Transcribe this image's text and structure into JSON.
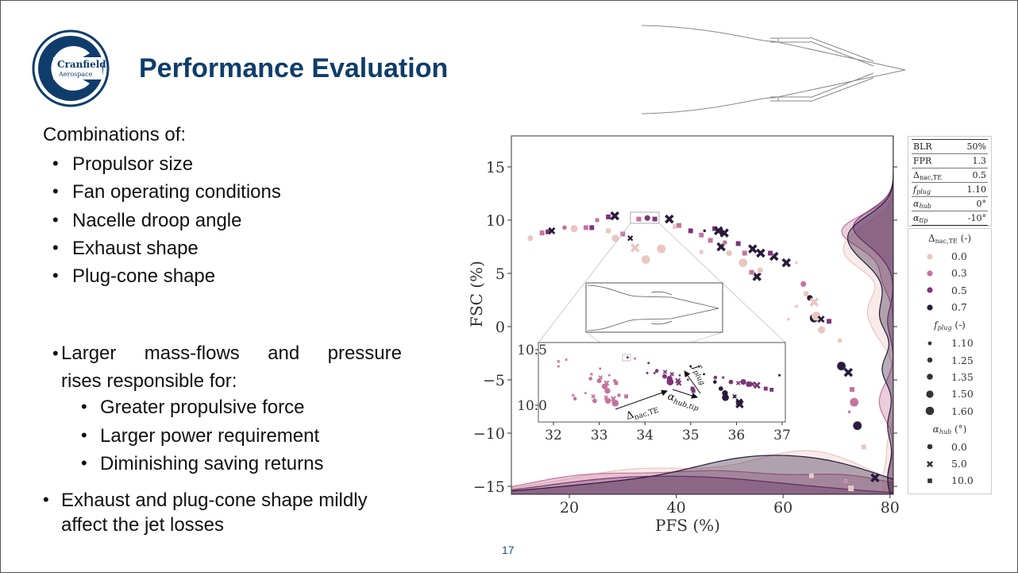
{
  "slide": {
    "logo": {
      "name": "Cranfield",
      "sub": "Aerospace",
      "color": "#0f3d6b"
    },
    "title": "Performance Evaluation",
    "page_number": "17",
    "bullets_intro": "Combinations of:",
    "bullets": [
      "Propulsor size",
      "Fan operating conditions",
      "Nacelle droop angle",
      "Exhaust shape",
      "Plug-cone shape"
    ],
    "bullet2_lines": [
      "Larger mass-flows and pressure",
      "rises responsible for:"
    ],
    "sub_bullets": [
      "Greater propulsive force",
      "Larger power requirement",
      "Diminishing saving returns"
    ],
    "bullet3_lines": [
      "Exhaust and plug-cone shape mildly",
      "affect the jet losses"
    ]
  },
  "table": [
    {
      "sym": "BLR",
      "sub": "",
      "italic": false,
      "value": "50%"
    },
    {
      "sym": "FPR",
      "sub": "",
      "italic": false,
      "value": "1.3"
    },
    {
      "sym": "Δ",
      "sub": "nac,TE",
      "italic": false,
      "value": "0.5"
    },
    {
      "sym": "f",
      "sub": "plug",
      "italic": true,
      "value": "1.10"
    },
    {
      "sym": "α",
      "sub": "hub",
      "italic": true,
      "value": "0°"
    },
    {
      "sym": "α",
      "sub": "tip",
      "italic": true,
      "value": "-10°"
    }
  ],
  "legend": {
    "dnac": {
      "sym": "Δ",
      "sub": "nac,TE",
      "unit": " (-)",
      "items": [
        "0.0",
        "0.3",
        "0.5",
        "0.7"
      ]
    },
    "fplug": {
      "sym": "f",
      "sub": "plug",
      "unit": " (-)",
      "items": [
        "1.10",
        "1.25",
        "1.35",
        "1.50",
        "1.60"
      ]
    },
    "ahub": {
      "sym": "α",
      "sub": "hub",
      "unit": " (°)",
      "items": [
        "0.0",
        "5.0",
        "10.0"
      ],
      "markers": [
        "circle",
        "x",
        "square"
      ]
    }
  },
  "chart_data": {
    "type": "scatter",
    "xlabel": "PFS (%)",
    "ylabel": "FSC (%)",
    "xlim": [
      9.2,
      80.6
    ],
    "ylim": [
      -15.8,
      17.9
    ],
    "xticks": [
      "20",
      "40",
      "60",
      "80"
    ],
    "xtick_values": [
      20,
      40,
      60,
      80
    ],
    "yticks": [
      "−15",
      "−10",
      "−5",
      "0",
      "5",
      "10",
      "15"
    ],
    "ytick_values": [
      -15,
      -10,
      -5,
      0,
      5,
      10,
      15
    ],
    "grid": false,
    "marginal_kde": true,
    "hue": {
      "name": "Δnac,TE",
      "values": [
        0.0,
        0.3,
        0.5,
        0.7
      ],
      "colors": [
        "#eac6c0",
        "#c4739c",
        "#7b3677",
        "#2a1a3c"
      ]
    },
    "size": {
      "name": "fplug",
      "values": [
        1.1,
        1.25,
        1.35,
        1.5,
        1.6
      ]
    },
    "style": {
      "name": "αhub",
      "values": [
        0.0,
        5.0,
        10.0
      ],
      "markers": [
        "circle",
        "x",
        "square"
      ]
    },
    "point_fields": [
      "PFS",
      "FSC",
      "dnac",
      "fplug",
      "ahub"
    ],
    "points": [
      [
        12.7,
        8.3,
        0.0,
        1.35,
        0
      ],
      [
        14.9,
        8.8,
        0.3,
        1.35,
        10
      ],
      [
        16.0,
        8.9,
        0.5,
        1.35,
        10
      ],
      [
        16.7,
        9.0,
        0.7,
        1.35,
        5
      ],
      [
        19.1,
        9.3,
        0.3,
        1.25,
        0
      ],
      [
        20.9,
        9.2,
        0.0,
        1.5,
        0
      ],
      [
        23.1,
        9.3,
        0.3,
        1.35,
        10
      ],
      [
        24.2,
        9.3,
        0.5,
        1.35,
        10
      ],
      [
        25.2,
        10.0,
        0.3,
        1.25,
        0
      ],
      [
        27.3,
        10.3,
        0.5,
        1.35,
        10
      ],
      [
        28.5,
        10.4,
        0.7,
        1.5,
        5
      ],
      [
        27.3,
        9.0,
        0.0,
        1.35,
        10
      ],
      [
        28.6,
        8.3,
        0.0,
        1.5,
        0
      ],
      [
        30.0,
        8.7,
        0.3,
        1.35,
        10
      ],
      [
        31.4,
        8.3,
        0.7,
        1.25,
        5
      ],
      [
        32.3,
        7.4,
        0.0,
        1.5,
        5
      ],
      [
        34.3,
        6.3,
        0.0,
        1.6,
        0
      ],
      [
        37.2,
        7.3,
        0.0,
        1.6,
        0
      ],
      [
        33.0,
        10.1,
        0.3,
        1.35,
        10
      ],
      [
        34.6,
        10.2,
        0.5,
        1.35,
        0
      ],
      [
        36.0,
        10.1,
        0.5,
        1.35,
        10
      ],
      [
        38.7,
        10.1,
        0.7,
        1.5,
        5
      ],
      [
        39.8,
        9.4,
        0.0,
        1.35,
        10
      ],
      [
        40.5,
        9.5,
        0.3,
        1.35,
        10
      ],
      [
        42.7,
        9.0,
        0.5,
        1.35,
        10
      ],
      [
        44.7,
        8.6,
        0.3,
        1.35,
        10
      ],
      [
        45.3,
        9.0,
        0.7,
        1.1,
        0
      ],
      [
        47.2,
        9.2,
        0.5,
        1.35,
        10
      ],
      [
        47.9,
        9.0,
        0.7,
        1.5,
        5
      ],
      [
        49.0,
        8.8,
        0.7,
        1.5,
        5
      ],
      [
        46.4,
        8.1,
        0.3,
        1.35,
        10
      ],
      [
        48.4,
        7.5,
        0.7,
        1.5,
        5
      ],
      [
        49.1,
        7.9,
        0.3,
        1.25,
        0
      ],
      [
        51.6,
        7.8,
        0.5,
        1.35,
        10
      ],
      [
        49.9,
        6.9,
        0.0,
        1.35,
        0
      ],
      [
        52.5,
        6.0,
        0.0,
        1.6,
        0
      ],
      [
        52.8,
        6.9,
        0.3,
        1.35,
        10
      ],
      [
        54.3,
        7.3,
        0.7,
        1.5,
        5
      ],
      [
        55.8,
        6.9,
        0.7,
        1.5,
        5
      ],
      [
        58.3,
        6.6,
        0.7,
        1.5,
        5
      ],
      [
        60.6,
        6.0,
        0.7,
        1.5,
        5
      ],
      [
        57.6,
        6.9,
        0.5,
        1.35,
        10
      ],
      [
        55.1,
        4.7,
        0.7,
        1.5,
        5
      ],
      [
        54.1,
        5.1,
        0.3,
        1.35,
        10
      ],
      [
        55.7,
        5.3,
        0.0,
        1.35,
        0
      ],
      [
        44.7,
        7.0,
        0.0,
        1.25,
        10
      ],
      [
        62.5,
        6.0,
        0.0,
        1.1,
        0
      ],
      [
        63.8,
        4.0,
        0.3,
        1.35,
        0
      ],
      [
        64.3,
        3.1,
        0.0,
        1.35,
        10
      ],
      [
        65.0,
        2.7,
        0.7,
        1.35,
        0
      ],
      [
        65.8,
        0.8,
        0.7,
        1.6,
        0
      ],
      [
        65.8,
        2.3,
        0.0,
        1.5,
        5
      ],
      [
        66.2,
        1.0,
        0.0,
        1.6,
        0
      ],
      [
        67.1,
        0.7,
        0.7,
        1.35,
        5
      ],
      [
        68.6,
        0.5,
        0.5,
        1.35,
        10
      ],
      [
        67.2,
        -0.3,
        0.0,
        1.5,
        0
      ],
      [
        70.6,
        -1.3,
        0.0,
        1.25,
        0
      ],
      [
        70.9,
        -3.7,
        0.7,
        1.6,
        0
      ],
      [
        72.2,
        -4.3,
        0.7,
        1.5,
        5
      ],
      [
        72.9,
        -5.9,
        0.3,
        1.35,
        10
      ],
      [
        73.3,
        -7.1,
        0.3,
        1.6,
        0
      ],
      [
        73.9,
        -9.3,
        0.7,
        1.6,
        0
      ],
      [
        72.4,
        -8.0,
        0.3,
        1.1,
        0
      ],
      [
        75.1,
        -11.3,
        0.0,
        1.35,
        10
      ],
      [
        65.3,
        -14.0,
        0.0,
        1.25,
        10
      ],
      [
        71.7,
        -14.5,
        0.3,
        1.1,
        0
      ],
      [
        77.2,
        -14.2,
        0.7,
        1.5,
        5
      ],
      [
        72.7,
        -15.2,
        0.0,
        1.35,
        10
      ],
      [
        61.0,
        0.7,
        0.0,
        1.1,
        0
      ],
      [
        62.5,
        1.9,
        0.0,
        1.1,
        5
      ]
    ],
    "inset": {
      "xlim": [
        31.66,
        37.06
      ],
      "ylim": [
        9.85,
        10.56
      ],
      "xticks": [
        "32",
        "33",
        "34",
        "35",
        "36",
        "37"
      ],
      "xtick_values": [
        32,
        33,
        34,
        35,
        36,
        37
      ],
      "yticks": [
        "10.0",
        "10.5"
      ],
      "ytick_values": [
        10.0,
        10.5
      ],
      "annotations": [
        {
          "sym": "Δ",
          "sub": "nac,TE"
        },
        {
          "sym": "α",
          "sub": "hub,tip"
        },
        {
          "sym": "f",
          "sub": "plug"
        }
      ],
      "points": [
        [
          32.11,
          10.395,
          0.3,
          1.1,
          5
        ],
        [
          32.11,
          10.35,
          0.3,
          1.1,
          0
        ],
        [
          32.28,
          10.41,
          0.3,
          1.1,
          10
        ],
        [
          32.43,
          10.09,
          0.3,
          1.1,
          5
        ],
        [
          32.47,
          10.06,
          0.3,
          1.25,
          0
        ],
        [
          32.7,
          10.11,
          0.3,
          1.1,
          10
        ],
        [
          32.87,
          10.08,
          0.3,
          1.25,
          5
        ],
        [
          32.9,
          10.04,
          0.3,
          1.35,
          0
        ],
        [
          32.83,
          10.28,
          0.3,
          1.1,
          5
        ],
        [
          32.81,
          10.24,
          0.3,
          1.25,
          0
        ],
        [
          33.02,
          10.33,
          0.3,
          1.1,
          10
        ],
        [
          33.03,
          10.25,
          0.3,
          1.25,
          5
        ],
        [
          33.0,
          10.22,
          0.3,
          1.35,
          0
        ],
        [
          33.12,
          10.17,
          0.3,
          1.5,
          0
        ],
        [
          33.16,
          10.2,
          0.3,
          1.35,
          5
        ],
        [
          33.18,
          10.13,
          0.3,
          1.5,
          0
        ],
        [
          33.15,
          10.07,
          0.3,
          1.25,
          5
        ],
        [
          33.19,
          10.04,
          0.3,
          1.5,
          0
        ],
        [
          33.22,
          10.27,
          0.3,
          1.1,
          10
        ],
        [
          33.31,
          10.06,
          0.3,
          1.35,
          5
        ],
        [
          33.35,
          10.02,
          0.3,
          1.6,
          0
        ],
        [
          33.34,
          10.22,
          0.3,
          1.25,
          10
        ],
        [
          33.37,
          10.2,
          0.3,
          1.35,
          10
        ],
        [
          33.43,
          10.09,
          0.3,
          1.25,
          10
        ],
        [
          33.59,
          10.08,
          0.3,
          1.35,
          10
        ],
        [
          33.62,
          10.43,
          0.5,
          1.1,
          0
        ],
        [
          33.78,
          10.42,
          0.3,
          1.1,
          10
        ],
        [
          34.08,
          10.38,
          0.5,
          1.1,
          0
        ],
        [
          34.05,
          10.29,
          0.5,
          1.1,
          0
        ],
        [
          34.26,
          10.31,
          0.5,
          1.25,
          0
        ],
        [
          34.21,
          10.29,
          0.5,
          1.1,
          10
        ],
        [
          34.43,
          10.26,
          0.5,
          1.35,
          0
        ],
        [
          34.44,
          10.3,
          0.5,
          1.25,
          5
        ],
        [
          34.54,
          10.24,
          0.5,
          1.5,
          0
        ],
        [
          34.55,
          10.21,
          0.5,
          1.6,
          0
        ],
        [
          34.59,
          10.28,
          0.5,
          1.25,
          5
        ],
        [
          34.72,
          10.22,
          0.5,
          1.35,
          5
        ],
        [
          34.74,
          10.2,
          0.5,
          1.35,
          5
        ],
        [
          34.76,
          10.27,
          0.5,
          1.1,
          10
        ],
        [
          34.94,
          10.23,
          0.5,
          1.1,
          10
        ],
        [
          35.0,
          10.35,
          0.7,
          1.1,
          0
        ],
        [
          35.04,
          10.15,
          0.5,
          1.35,
          10
        ],
        [
          35.06,
          10.13,
          0.5,
          1.35,
          10
        ],
        [
          35.29,
          10.28,
          0.7,
          1.1,
          10
        ],
        [
          35.54,
          10.25,
          0.5,
          1.25,
          0
        ],
        [
          35.53,
          10.21,
          0.7,
          1.25,
          0
        ],
        [
          35.71,
          10.25,
          0.5,
          1.1,
          5
        ],
        [
          35.66,
          10.15,
          0.7,
          1.35,
          0
        ],
        [
          35.75,
          10.11,
          0.7,
          1.5,
          0
        ],
        [
          35.76,
          10.07,
          0.7,
          1.6,
          0
        ],
        [
          35.88,
          10.21,
          0.5,
          1.35,
          0
        ],
        [
          35.96,
          10.08,
          0.7,
          1.25,
          5
        ],
        [
          36.04,
          10.2,
          0.5,
          1.25,
          5
        ],
        [
          36.15,
          10.21,
          0.5,
          1.5,
          0
        ],
        [
          36.27,
          10.19,
          0.5,
          1.5,
          0
        ],
        [
          36.35,
          10.19,
          0.5,
          1.35,
          5
        ],
        [
          36.45,
          10.18,
          0.5,
          1.5,
          5
        ],
        [
          36.64,
          10.15,
          0.5,
          1.35,
          10
        ],
        [
          36.77,
          10.14,
          0.5,
          1.35,
          10
        ],
        [
          36.94,
          10.27,
          0.7,
          1.1,
          0
        ],
        [
          36.06,
          10.03,
          0.7,
          1.5,
          5
        ],
        [
          36.07,
          10.01,
          0.7,
          1.6,
          5
        ]
      ]
    }
  }
}
